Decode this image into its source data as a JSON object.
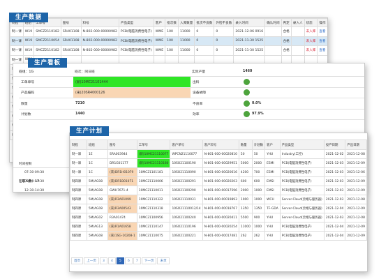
{
  "production_data": {
    "title": "生产数据",
    "headers": [
      "制程",
      "班组",
      "工单号",
      "图号",
      "料号",
      "产品类型",
      "客户",
      "批次数",
      "入库数量",
      "批次不良数",
      "外检不良数",
      "录入时间",
      "确认时间",
      "判定",
      "录入人",
      "状态",
      "操作"
    ],
    "rows": [
      [
        "制一课",
        "W19",
        "SMCZ2110182",
        "SR401108",
        "N-802-000-00000982",
        "PCB(电脑消费性电子)",
        "WME",
        "100",
        "11000",
        "0",
        "0",
        "2021-12-06 0916",
        "",
        "合格",
        "",
        "未入库",
        "查看"
      ],
      [
        "制一课",
        "W19",
        "SMCZ2110054",
        "SR401108",
        "N-802-000-00000982",
        "PCB(电脑消费性电子)",
        "WME",
        "100",
        "11000",
        "0",
        "0",
        "2021-11-30 1525",
        "",
        "合格",
        "",
        "未入库",
        "查看"
      ],
      [
        "制一课",
        "W19",
        "SMCZ2110182",
        "SR401108",
        "N-802-000-00000982",
        "PCB(电脑消费性电子)",
        "WME",
        "100",
        "11000",
        "0",
        "0",
        "2021-11-30 1525",
        "",
        "合格",
        "",
        "未入库",
        "查看"
      ],
      [
        "制一课",
        "W20",
        "",
        "",
        "",
        "",
        "",
        "",
        "",
        "",
        "",
        "",
        "",
        "",
        "",
        "",
        ""
      ],
      [
        "制一课",
        "W08",
        "",
        "",
        "",
        "",
        "",
        "",
        "",
        "",
        "",
        "",
        "",
        "",
        "",
        "",
        ""
      ],
      [
        "制一课",
        "W08",
        "",
        "",
        "",
        "",
        "",
        "",
        "",
        "",
        "",
        "",
        "",
        "",
        "",
        "",
        ""
      ],
      [
        "制二课",
        "ZA",
        "",
        "",
        "",
        "",
        "",
        "",
        "",
        "",
        "",
        "",
        "",
        "",
        "",
        "",
        ""
      ],
      [
        "制二课",
        "W1",
        "",
        "",
        "",
        "",
        "",
        "",
        "",
        "",
        "",
        "",
        "",
        "",
        "",
        "",
        ""
      ],
      [
        "制一课",
        "W1",
        "",
        "",
        "",
        "",
        "",
        "",
        "",
        "",
        "",
        "",
        "",
        "",
        "",
        "",
        ""
      ],
      [
        "制二课",
        "W1",
        "",
        "",
        "",
        "",
        "",
        "",
        "",
        "",
        "",
        "",
        "",
        "",
        "",
        "",
        ""
      ],
      [
        "制一课",
        "W1",
        "",
        "",
        "",
        "",
        "",
        "",
        "",
        "",
        "",
        "",
        "",
        "",
        "",
        "",
        ""
      ],
      [
        "制四课",
        "W1",
        "",
        "",
        "",
        "",
        "",
        "",
        "",
        "",
        "",
        "",
        "",
        "",
        "",
        "",
        ""
      ]
    ]
  },
  "production_board": {
    "title": "生产看板",
    "line_label": "班组：1G",
    "shift_label": "班次：同日班",
    "rows": [
      {
        "k1": "工单单号",
        "v1": "(新)10MC21101444",
        "k2": "出料",
        "v2": "",
        "s2": "dot"
      },
      {
        "k1": "产品编码",
        "v1": "(来)20SR4000126",
        "k2": "设备故障",
        "v2": "",
        "s2": "dot"
      },
      {
        "k1": "数量",
        "v1": "7210",
        "k2": "不良率",
        "v2": "0.0%",
        "s2": "dot"
      },
      {
        "k1": "计划数",
        "v1": "1440",
        "k2": "效率",
        "v2": "97.9%",
        "s2": "dot"
      }
    ],
    "kpi_label": "实际产量",
    "kpi_value": "1460",
    "side_header": "时间控制",
    "side_times": [
      "07:30-09:30",
      "09:30-11:30",
      "12:30-14:30",
      "15:30-17:30"
    ],
    "side_total": "在职人数：17"
  },
  "production_plan": {
    "title": "生产计划",
    "headers": [
      "制程",
      "班组",
      "图号",
      "工单号",
      "客户单号",
      "客户料号",
      "数量",
      "计划数",
      "客户",
      "产品类型",
      "投产日期",
      "产出日期"
    ],
    "rows": [
      [
        "制一课",
        "1E",
        "SRA003944",
        "(新)10MC21110077",
        "WPCN21110077",
        "N-801-000-00020810",
        "50",
        "50",
        "YHU",
        "Industry(工控)",
        "2021-12-02",
        "2021-12-08"
      ],
      [
        "制一课",
        "1C",
        "DR1G01177",
        "(新)10MC21110180",
        "10SO21100190",
        "N-801-000-00029951",
        "5000",
        "2000",
        "ESMI",
        "PCB(电脑消费性电子)",
        "2021-12-03",
        "2021-12-09"
      ],
      [
        "制一课",
        "1C",
        "(来)DR1H01079",
        "10MC21101181",
        "10SO21110090",
        "N-801-000-00020616",
        "4200",
        "700",
        "ESMI",
        "PCB(电脑消费性电子)",
        "2021-12-03",
        "2021-12-06"
      ],
      [
        "制四课",
        "5M/AG08",
        "(来)DR1B01071",
        "10MC21110006",
        "10SO21100291",
        "N-801-000-00020203",
        "600",
        "600",
        "EMSI",
        "PCB(电脑消费性电子)",
        "2021-12-03",
        "2021-12-09"
      ],
      [
        "制四课",
        "5M/AG08",
        "GWH7671-4",
        "10MC21110011",
        "10SO21100290",
        "N-801-000-00017596",
        "2000",
        "1000",
        "EMSI",
        "PCB(电脑消费性电子)",
        "2021-12-03",
        "2021-12-09"
      ],
      [
        "制四课",
        "5M/AG08",
        "(来)R3A01099",
        "10MC21110322",
        "10SO21110031",
        "N-801-000-00019893",
        "1000",
        "1000",
        "WCH",
        "Server-Cloud(云端与服务器)",
        "2021-12-03",
        "2021-12-08"
      ],
      [
        "制四课",
        "5M/AG08",
        "(来)R3A00543",
        "10MC21110318",
        "10SO21110012/14",
        "N-801-000-00018767",
        "1350",
        "1350",
        "TF-GDA",
        "Server-Cloud(云端与服务器)",
        "2021-12-04",
        "2021-12-09"
      ],
      [
        "制四课",
        "5M/AG02",
        "R3A01474",
        "10MC21100956",
        "10SO21100240",
        "N-801-000-00020411",
        "5500",
        "900",
        "YHU",
        "Server-Cloud(云端与服务器)",
        "2021-12-03",
        "2021-12-08"
      ],
      [
        "制四课",
        "5M/AG13",
        "(来)R1A01658",
        "10MC21110147",
        "10SO21110196",
        "N-801-000-00020254",
        "11000",
        "1000",
        "YHU",
        "PCB(电脑消费性电子)",
        "2021-12-04",
        "2021-12-09"
      ],
      [
        "制四课",
        "5M/AG08",
        "(来)1SG-10208-1",
        "10MC21110075",
        "10SO21100221",
        "N-801-000-00017481",
        "262",
        "262",
        "YHU",
        "PCB(电脑消费性电子)",
        "2021-12-04",
        "2021-12-09"
      ]
    ],
    "pager": [
      "首页",
      "上一页",
      "3",
      "4",
      "5",
      "6",
      "7",
      "下一页",
      "末页"
    ],
    "pager_current": "5"
  },
  "colors": {
    "accent": "#1d64a8",
    "green_hl": "#2fe626",
    "peach_hl": "#f9d6b4",
    "status_red": "#d8283b",
    "ok_green": "#4da43c"
  }
}
